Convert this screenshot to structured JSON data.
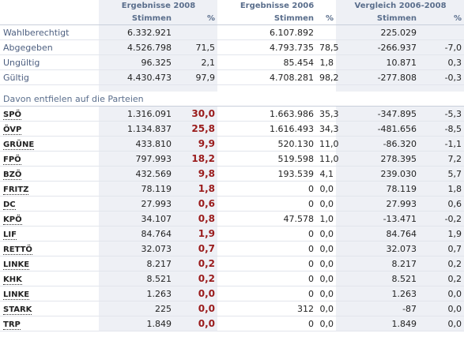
{
  "header": {
    "groups": [
      "Ergebnisse 2008",
      "Ergebnisse 2006",
      "Vergleich 2006-2008"
    ],
    "columns": [
      "Stimmen",
      "%",
      "Stimmen",
      "%",
      "Stimmen",
      "%"
    ]
  },
  "summary": [
    {
      "label": "Wahlberechtigt",
      "cells": [
        "6.332.921",
        null,
        "6.107.892",
        null,
        "225.029",
        null
      ]
    },
    {
      "label": "Abgegeben",
      "cells": [
        "4.526.798",
        "71,5",
        "4.793.735",
        "78,5",
        "-266.937",
        "-7,0"
      ]
    },
    {
      "label": "Ungültig",
      "cells": [
        "96.325",
        "2,1",
        "85.454",
        "1,8",
        "10.871",
        "0,3"
      ]
    },
    {
      "label": "Gültig",
      "cells": [
        "4.430.473",
        "97,9",
        "4.708.281",
        "98,2",
        "-277.808",
        "-0,3"
      ]
    }
  ],
  "section_title": "Davon entfielen auf die Parteien",
  "parties": [
    {
      "label": "SPÖ",
      "cells": [
        "1.316.091",
        "30,0",
        "1.663.986",
        "35,3",
        "-347.895",
        "-5,3"
      ]
    },
    {
      "label": "ÖVP",
      "cells": [
        "1.134.837",
        "25,8",
        "1.616.493",
        "34,3",
        "-481.656",
        "-8,5"
      ]
    },
    {
      "label": "GRÜNE",
      "cells": [
        "433.810",
        "9,9",
        "520.130",
        "11,0",
        "-86.320",
        "-1,1"
      ]
    },
    {
      "label": "FPÖ",
      "cells": [
        "797.993",
        "18,2",
        "519.598",
        "11,0",
        "278.395",
        "7,2"
      ]
    },
    {
      "label": "BZÖ",
      "cells": [
        "432.569",
        "9,8",
        "193.539",
        "4,1",
        "239.030",
        "5,7"
      ]
    },
    {
      "label": "FRITZ",
      "cells": [
        "78.119",
        "1,8",
        "0",
        "0,0",
        "78.119",
        "1,8"
      ]
    },
    {
      "label": "DC",
      "cells": [
        "27.993",
        "0,6",
        "0",
        "0,0",
        "27.993",
        "0,6"
      ]
    },
    {
      "label": "KPÖ",
      "cells": [
        "34.107",
        "0,8",
        "47.578",
        "1,0",
        "-13.471",
        "-0,2"
      ]
    },
    {
      "label": "LIF",
      "cells": [
        "84.764",
        "1,9",
        "0",
        "0,0",
        "84.764",
        "1,9"
      ]
    },
    {
      "label": "RETTÖ",
      "cells": [
        "32.073",
        "0,7",
        "0",
        "0,0",
        "32.073",
        "0,7"
      ]
    },
    {
      "label": "LINKE",
      "cells": [
        "8.217",
        "0,2",
        "0",
        "0,0",
        "8.217",
        "0,2"
      ]
    },
    {
      "label": "KHK",
      "cells": [
        "8.521",
        "0,2",
        "0",
        "0,0",
        "8.521",
        "0,2"
      ]
    },
    {
      "label": "LINKE",
      "cells": [
        "1.263",
        "0,0",
        "0",
        "0,0",
        "1.263",
        "0,0"
      ]
    },
    {
      "label": "STARK",
      "cells": [
        "225",
        "0,0",
        "312",
        "0,0",
        "-87",
        "0,0"
      ]
    },
    {
      "label": "TRP",
      "cells": [
        "1.849",
        "0,0",
        "0",
        "0,0",
        "1.849",
        "0,0"
      ]
    }
  ]
}
